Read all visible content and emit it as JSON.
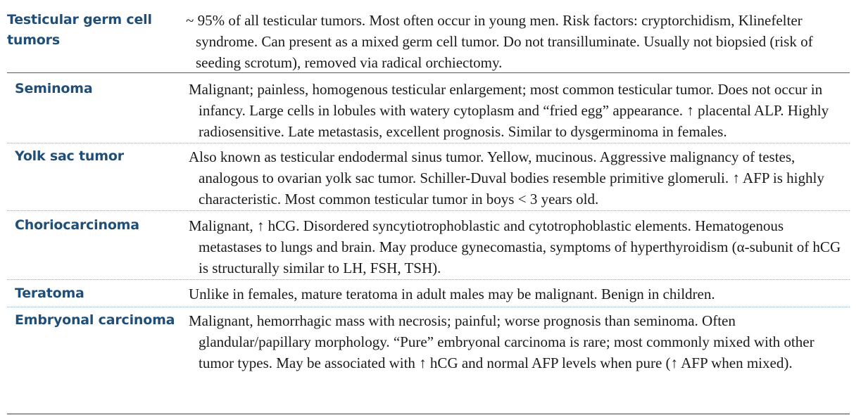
{
  "rows": [
    {
      "term": "Testicular germ cell tumors",
      "description": "~ 95% of all testicular tumors. Most often occur in young men. Risk factors: cryptorchidism, Klinefelter syndrome. Can present as a mixed germ cell tumor. Do not transilluminate. Usually not biopsied (risk of seeding scrotum), removed via radical orchiectomy."
    },
    {
      "term": "Seminoma",
      "description": "Malignant; painless, homogenous testicular enlargement; most common testicular tumor. Does not occur in infancy. Large cells in lobules with watery cytoplasm and “fried egg” appearance. ↑ placental ALP. Highly radiosensitive. Late metastasis, excellent prognosis. Similar to dysgerminoma in females."
    },
    {
      "term": "Yolk sac tumor",
      "description": "Also known as testicular endodermal sinus tumor. Yellow, mucinous. Aggressive malignancy of testes, analogous to ovarian yolk sac tumor. Schiller-Duval bodies resemble primitive glomeruli. ↑ AFP is highly characteristic. Most common testicular tumor in boys < 3 years old."
    },
    {
      "term": "Choriocarcinoma",
      "description": "Malignant, ↑ hCG. Disordered syncytiotrophoblastic and cytotrophoblastic elements. Hematogenous metastases to lungs and brain. May produce gynecomastia, symptoms of hyperthyroidism (α-subunit of hCG is structurally similar to LH, FSH, TSH)."
    },
    {
      "term": "Teratoma",
      "description": "Unlike in females, mature teratoma in adult males may be malignant. Benign in children."
    },
    {
      "term": "Embryonal carcinoma",
      "description": "Malignant, hemorrhagic mass with necrosis; painful; worse prognosis than seminoma. Often glandular/papillary morphology. “Pure” embryonal carcinoma is rare; most commonly mixed with other tumor types. May be associated with ↑ hCG and normal AFP levels when pure (↑ AFP when mixed)."
    }
  ],
  "colors": {
    "term_text": "#1f4e79",
    "body_text": "#1a1a1a",
    "rule_solid": "#3a5f7f",
    "rule_dotted": "#8aa3b8"
  }
}
